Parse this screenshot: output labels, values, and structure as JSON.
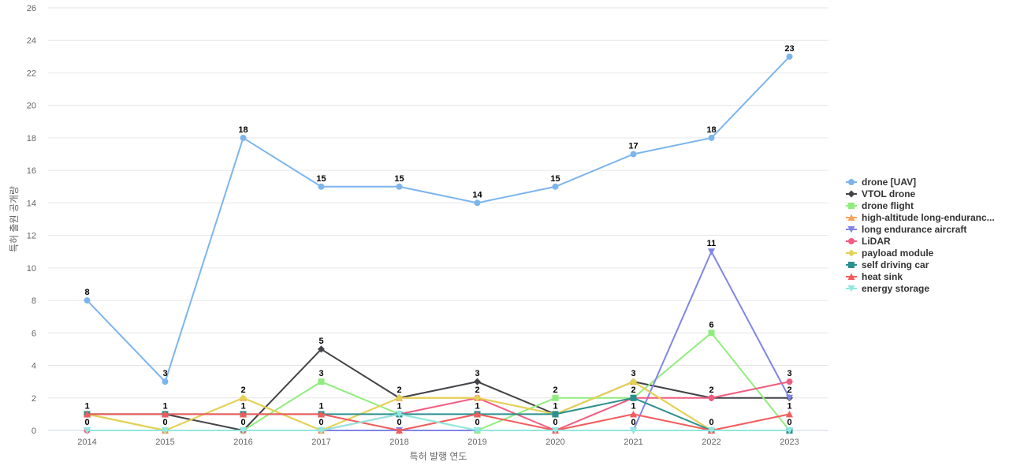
{
  "chart_data": {
    "type": "line",
    "title": "",
    "xlabel": "특허 발행 연도",
    "ylabel": "특허 출원 공개량",
    "x": [
      "2014",
      "2015",
      "2016",
      "2017",
      "2018",
      "2019",
      "2020",
      "2021",
      "2022",
      "2023"
    ],
    "ylim": [
      0,
      26
    ],
    "yticks": [
      0,
      2,
      4,
      6,
      8,
      10,
      12,
      14,
      16,
      18,
      20,
      22,
      24,
      26
    ],
    "grid": true,
    "legend_position": "right",
    "series": [
      {
        "name": "drone [UAV]",
        "color": "#7cb5ec",
        "marker": "circle",
        "values": [
          8,
          3,
          18,
          15,
          15,
          14,
          15,
          17,
          18,
          23
        ],
        "labeled": true
      },
      {
        "name": "VTOL drone",
        "color": "#434348",
        "marker": "diamond",
        "values": [
          1,
          1,
          0,
          5,
          2,
          3,
          1,
          3,
          2,
          2
        ],
        "labeled": true
      },
      {
        "name": "drone flight",
        "color": "#90ed7d",
        "marker": "square",
        "values": [
          1,
          0,
          0,
          3,
          1,
          0,
          2,
          2,
          6,
          0
        ],
        "labeled": true
      },
      {
        "name": "high-altitude long-enduranc...",
        "color": "#f7a35c",
        "marker": "triangle",
        "values": [
          1,
          0,
          2,
          0,
          2,
          2,
          1,
          3,
          0,
          0
        ],
        "labeled": false
      },
      {
        "name": "long endurance aircraft",
        "color": "#8085e9",
        "marker": "triangle-down",
        "values": [
          0,
          0,
          0,
          0,
          0,
          0,
          0,
          0,
          11,
          2
        ],
        "labeled": true
      },
      {
        "name": "LiDAR",
        "color": "#f15c80",
        "marker": "circle",
        "values": [
          0,
          0,
          0,
          0,
          1,
          2,
          0,
          2,
          2,
          3
        ],
        "labeled": true
      },
      {
        "name": "payload module",
        "color": "#e4d354",
        "marker": "diamond",
        "values": [
          1,
          0,
          2,
          0,
          2,
          2,
          1,
          3,
          0,
          0
        ],
        "labeled": true
      },
      {
        "name": "self driving car",
        "color": "#2b908f",
        "marker": "square",
        "values": [
          1,
          1,
          1,
          1,
          1,
          1,
          1,
          2,
          0,
          0
        ],
        "labeled": true
      },
      {
        "name": "heat sink",
        "color": "#f45b5b",
        "marker": "triangle",
        "values": [
          1,
          1,
          1,
          1,
          0,
          1,
          0,
          1,
          0,
          1
        ],
        "labeled": true
      },
      {
        "name": "energy storage",
        "color": "#91e8e1",
        "marker": "triangle-down",
        "values": [
          0,
          0,
          0,
          0,
          1,
          0,
          0,
          0,
          0,
          0
        ],
        "labeled": false
      }
    ]
  }
}
